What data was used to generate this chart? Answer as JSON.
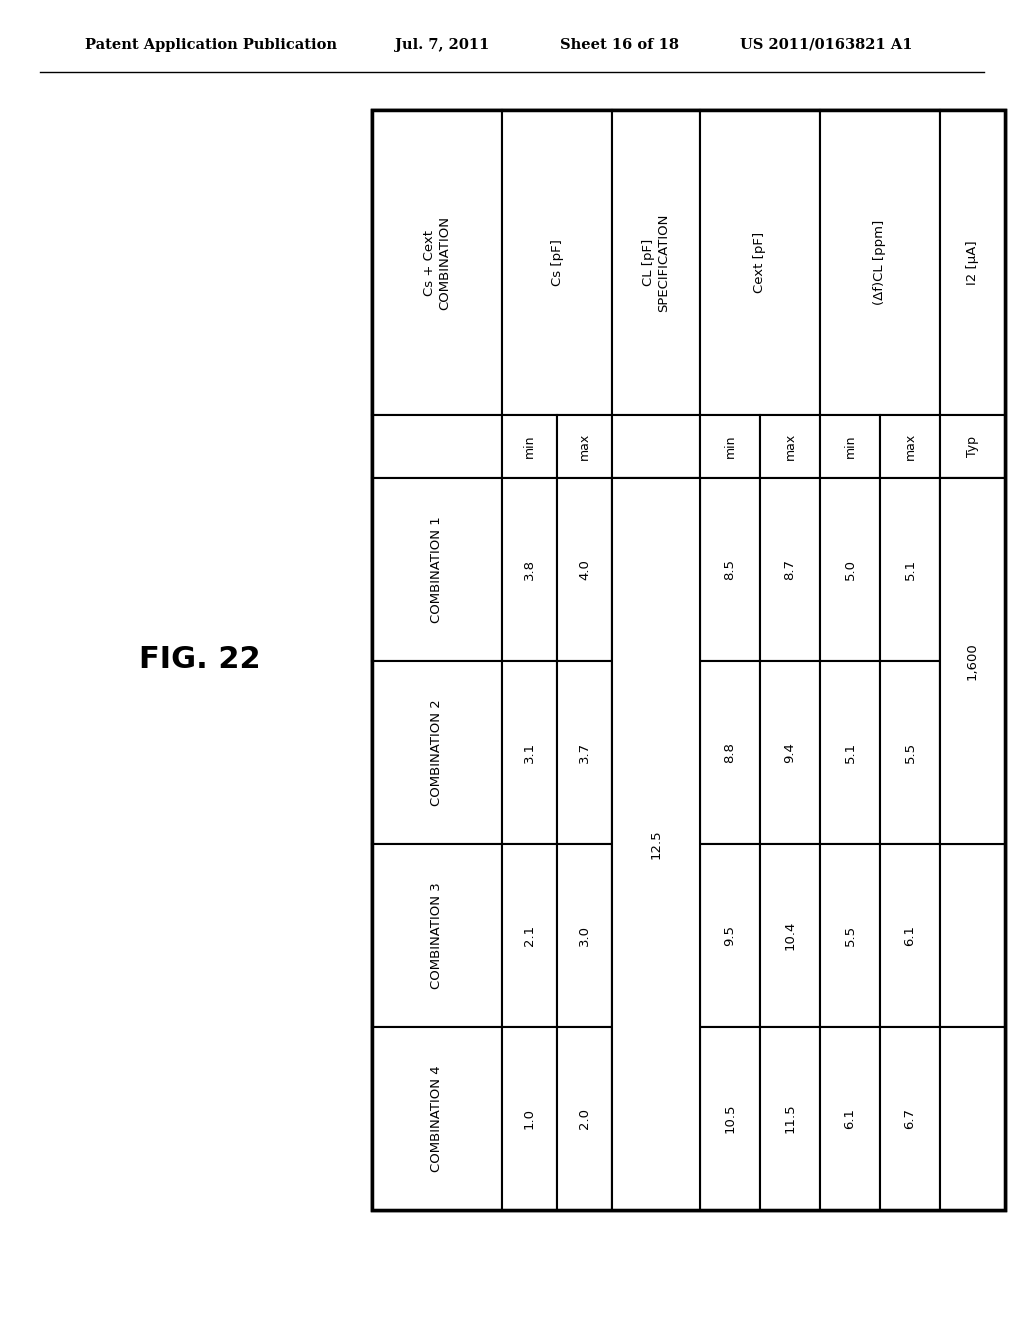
{
  "header_line1": "Patent Application Publication",
  "header_line2": "Jul. 7, 2011",
  "header_line3": "Sheet 16 of 18",
  "header_line4": "US 2011/0163821 A1",
  "fig_label": "FIG. 22",
  "table": {
    "col_groups": [
      {
        "label": "Cs + Cext\nCOMBINATION",
        "cols": [
          0
        ]
      },
      {
        "label": "Cs [pF]",
        "cols": [
          1,
          2
        ]
      },
      {
        "label": "CL [pF]\nSPECIFICATION",
        "cols": [
          3
        ]
      },
      {
        "label": "Cext [pF]",
        "cols": [
          4,
          5
        ]
      },
      {
        "label": "(Δf)CL [ppm]",
        "cols": [
          6,
          7
        ]
      },
      {
        "label": "I2 [μA]",
        "cols": [
          8
        ]
      }
    ],
    "subheaders": [
      "",
      "min",
      "max",
      "",
      "min",
      "max",
      "min",
      "max",
      "Typ"
    ],
    "rows": [
      [
        "COMBINATION 1",
        "3.8",
        "4.0",
        "",
        "8.5",
        "8.7",
        "5.0",
        "5.1",
        ""
      ],
      [
        "COMBINATION 2",
        "3.1",
        "3.7",
        "",
        "8.8",
        "9.4",
        "5.1",
        "5.5",
        ""
      ],
      [
        "COMBINATION 3",
        "2.1",
        "3.0",
        "",
        "9.5",
        "10.4",
        "5.5",
        "6.1",
        ""
      ],
      [
        "COMBINATION 4",
        "1.0",
        "2.0",
        "",
        "10.5",
        "11.5",
        "6.1",
        "6.7",
        ""
      ]
    ],
    "cl_value": "12.5",
    "cl_row_span": [
      0,
      3
    ],
    "i2_value": "1,600",
    "i2_row_span": [
      0,
      1
    ]
  },
  "bg_color": "#ffffff",
  "text_color": "#000000",
  "line_color": "#000000"
}
